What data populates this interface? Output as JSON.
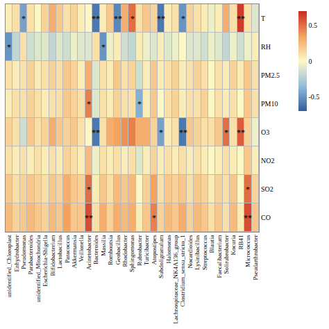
{
  "chart_data": {
    "type": "heatmap",
    "columns": [
      "unidentified_Chloroplast",
      "Enhydrobacter",
      "Pseudomonas",
      "Parabacteroides",
      "unidentified_Mitochondria",
      "Escherichia-Shigella",
      "Bifidobacterium",
      "Lactobacillus",
      "Paracoccus",
      "Akkermansia",
      "Veillonella",
      "Acinetobacter",
      "Bacteroides",
      "Massilia",
      "Romboutsia",
      "Geobacillus",
      "Rhodobacter",
      "Sphingomonas",
      "Rubrobacter",
      "Turicibacter",
      "Atopostipes",
      "Subdoligranulum",
      "Halomonas",
      "Lachnospiraceae_NK4A136_group",
      "Clostridium_sensu_stricto_1",
      "Nocardioides",
      "Lysinibacillus",
      "Streptococcus",
      "Blautia",
      "Faecalibacterium",
      "Solirubrobacter",
      "Kocuria",
      "RB41",
      "Micrococcus",
      "Pseudarthrobacter"
    ],
    "rows": [
      "T",
      "RH",
      "PM2.5",
      "PM10",
      "O3",
      "NO2",
      "SO2",
      "CO"
    ],
    "cells": [
      [
        0.05,
        0.1,
        -0.45,
        0.1,
        0.0,
        0.15,
        0.3,
        0.2,
        0.1,
        0.15,
        0.05,
        0.0,
        -0.6,
        0.05,
        0.2,
        -0.55,
        0.3,
        0.5,
        0.1,
        0.2,
        0.15,
        -0.6,
        0.05,
        0.1,
        -0.5,
        0.15,
        0.1,
        0.05,
        -0.05,
        0.05,
        0.3,
        0.1,
        0.65,
        0.1,
        -0.1
      ],
      [
        -0.5,
        -0.2,
        0.1,
        -0.15,
        -0.1,
        -0.1,
        -0.2,
        -0.1,
        -0.15,
        -0.05,
        -0.1,
        -0.1,
        0.1,
        -0.5,
        -0.05,
        0.05,
        -0.15,
        -0.2,
        0.05,
        -0.05,
        -0.1,
        0.05,
        -0.1,
        -0.05,
        0.0,
        -0.1,
        -0.1,
        -0.15,
        -0.05,
        -0.1,
        -0.2,
        -0.05,
        -0.15,
        -0.05,
        0.05
      ],
      [
        0.1,
        0.05,
        0.1,
        0.15,
        0.05,
        0.1,
        0.15,
        0.1,
        0.2,
        0.15,
        0.05,
        0.3,
        -0.1,
        0.1,
        0.05,
        0.2,
        0.1,
        0.15,
        -0.15,
        0.05,
        0.2,
        0.05,
        0.1,
        0.15,
        0.05,
        0.1,
        0.15,
        0.1,
        0.0,
        0.1,
        0.05,
        0.15,
        0.05,
        0.2,
        0.1
      ],
      [
        0.05,
        0.1,
        0.1,
        0.15,
        0.1,
        0.05,
        0.1,
        0.1,
        0.2,
        0.15,
        0.1,
        0.45,
        -0.1,
        0.1,
        0.05,
        0.15,
        0.1,
        0.1,
        -0.4,
        0.05,
        0.2,
        0.0,
        0.1,
        0.15,
        0.05,
        0.1,
        0.1,
        0.15,
        0.0,
        0.1,
        0.05,
        0.1,
        0.0,
        0.2,
        0.1
      ],
      [
        0.15,
        0.1,
        -0.15,
        0.2,
        0.1,
        0.15,
        0.3,
        0.2,
        0.15,
        0.2,
        0.1,
        0.0,
        -0.6,
        0.1,
        0.3,
        0.35,
        0.4,
        0.45,
        0.3,
        0.3,
        0.15,
        -0.45,
        0.05,
        0.1,
        -0.6,
        0.2,
        0.15,
        0.1,
        0.1,
        0.2,
        0.5,
        0.1,
        0.55,
        0.15,
        -0.05
      ],
      [
        0.1,
        0.05,
        0.1,
        0.05,
        0.1,
        0.05,
        0.1,
        0.05,
        0.15,
        0.1,
        0.05,
        0.25,
        -0.05,
        0.1,
        0.05,
        0.1,
        0.05,
        0.1,
        -0.1,
        0.05,
        0.15,
        0.05,
        0.1,
        0.05,
        0.1,
        0.05,
        0.1,
        0.05,
        0.0,
        0.05,
        0.1,
        0.05,
        0.0,
        0.2,
        0.05
      ],
      [
        0.2,
        0.1,
        0.15,
        0.2,
        0.15,
        0.1,
        0.2,
        0.15,
        0.3,
        0.2,
        0.15,
        0.5,
        0.05,
        0.2,
        0.1,
        0.25,
        0.2,
        0.25,
        0.0,
        0.15,
        0.35,
        0.1,
        0.2,
        0.15,
        0.2,
        0.1,
        0.2,
        0.15,
        0.05,
        0.15,
        0.1,
        0.2,
        0.0,
        0.5,
        0.15
      ],
      [
        0.25,
        0.15,
        0.2,
        0.25,
        0.2,
        0.15,
        0.25,
        0.2,
        0.35,
        0.2,
        0.2,
        0.6,
        0.1,
        0.3,
        0.15,
        0.3,
        0.25,
        0.3,
        0.05,
        0.2,
        0.45,
        0.15,
        0.25,
        0.2,
        0.3,
        0.15,
        0.25,
        0.2,
        0.1,
        0.2,
        0.1,
        0.25,
        0.05,
        0.6,
        0.2
      ]
    ],
    "zlim": [
      -0.7,
      0.7
    ],
    "zticks": [
      -0.5,
      0,
      0.5
    ],
    "significance": [
      {
        "row": "T",
        "column": "Pseudomonas",
        "label": "*"
      },
      {
        "row": "T",
        "column": "Bacteroides",
        "label": "**"
      },
      {
        "row": "T",
        "column": "Geobacillus",
        "label": "**"
      },
      {
        "row": "T",
        "column": "Sphingomonas",
        "label": "*"
      },
      {
        "row": "T",
        "column": "Subdoligranulum",
        "label": "**"
      },
      {
        "row": "T",
        "column": "Clostridium_sensu_stricto_1",
        "label": "*"
      },
      {
        "row": "T",
        "column": "RB41",
        "label": "**"
      },
      {
        "row": "RH",
        "column": "unidentified_Chloroplast",
        "label": "*"
      },
      {
        "row": "RH",
        "column": "Massilia",
        "label": "*"
      },
      {
        "row": "PM10",
        "column": "Acinetobacter",
        "label": "*"
      },
      {
        "row": "PM10",
        "column": "Rubrobacter",
        "label": "*"
      },
      {
        "row": "O3",
        "column": "Bacteroides",
        "label": "**"
      },
      {
        "row": "O3",
        "column": "Subdoligranulum",
        "label": "*"
      },
      {
        "row": "O3",
        "column": "Clostridium_sensu_stricto_1",
        "label": "**"
      },
      {
        "row": "O3",
        "column": "Solirubrobacter",
        "label": "*"
      },
      {
        "row": "O3",
        "column": "RB41",
        "label": "**"
      },
      {
        "row": "SO2",
        "column": "Acinetobacter",
        "label": "*"
      },
      {
        "row": "SO2",
        "column": "Micrococcus",
        "label": "*"
      },
      {
        "row": "CO",
        "column": "Acinetobacter",
        "label": "**"
      },
      {
        "row": "CO",
        "column": "Atopostipes",
        "label": "*"
      },
      {
        "row": "CO",
        "column": "Micrococcus",
        "label": "**"
      }
    ]
  }
}
